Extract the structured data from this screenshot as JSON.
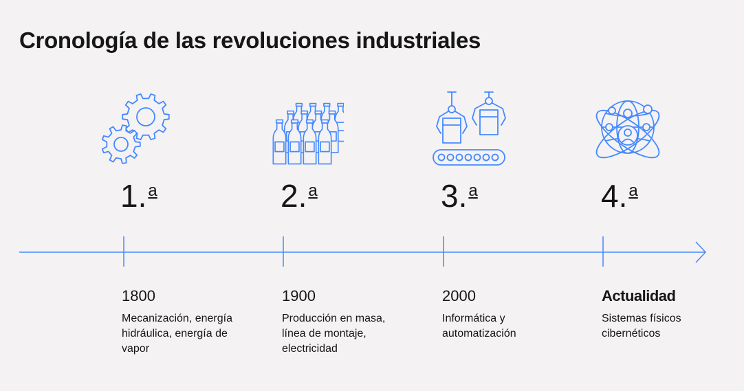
{
  "title": "Cronología de las revoluciones industriales",
  "colors": {
    "accent": "#4589ff",
    "text": "#161616",
    "background": "#f4f2f3"
  },
  "revolutions": [
    {
      "number": "1.",
      "sup": "a",
      "year": "1800",
      "description_lines": [
        "Mecanización, energía",
        "hidráulica, energía de",
        "vapor"
      ],
      "icon": "gears-icon"
    },
    {
      "number": "2.",
      "sup": "a",
      "year": "1900",
      "description_lines": [
        "Producción en masa,",
        "línea de montaje,",
        "electricidad"
      ],
      "icon": "bottles-icon"
    },
    {
      "number": "3.",
      "sup": "a",
      "year": "2000",
      "description_lines": [
        "Informática y",
        "automatización"
      ],
      "icon": "robotic-arms-conveyor-icon"
    },
    {
      "number": "4.",
      "sup": "a",
      "year": "Actualidad",
      "description_lines": [
        "Sistemas físicos",
        "cibernéticos"
      ],
      "icon": "globe-network-icon"
    }
  ]
}
